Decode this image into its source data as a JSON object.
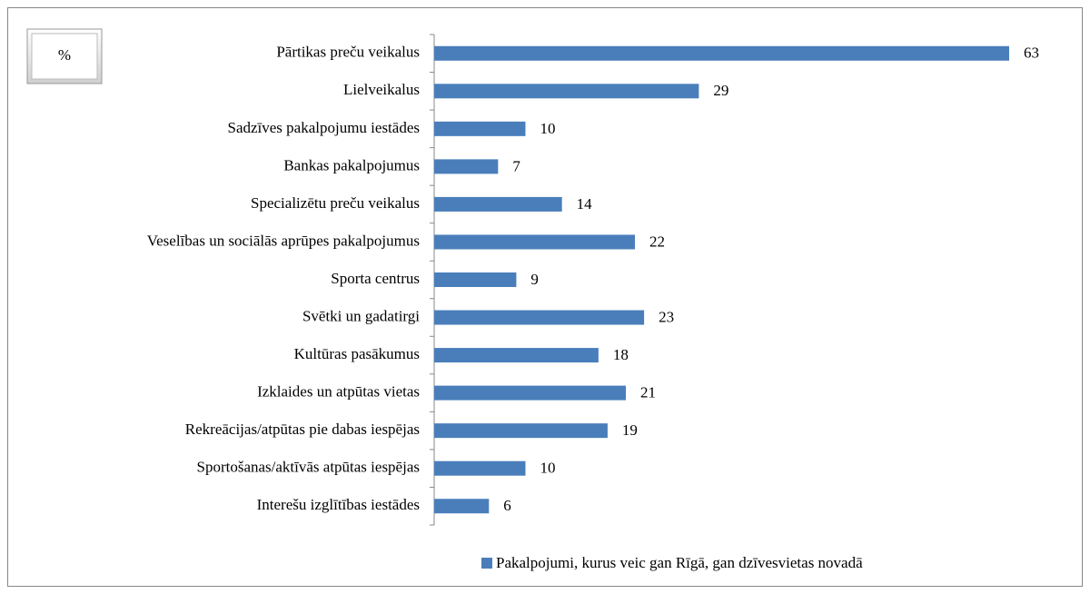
{
  "chart_data": {
    "type": "bar",
    "orientation": "horizontal",
    "annotation": "%",
    "categories": [
      "Pārtikas preču veikalus",
      "Lielveikalus",
      "Sadzīves pakalpojumu iestādes",
      "Bankas pakalpojumus",
      "Specializētu preču veikalus",
      "Veselības un sociālās aprūpes pakalpojumus",
      "Sporta centrus",
      "Svētki un gadatirgi",
      "Kultūras pasākumus",
      "Izklaides un atpūtas vietas",
      "Rekreācijas/atpūtas pie dabas iespējas",
      "Sportošanas/aktīvās atpūtas iespējas",
      "Interešu izglītības iestādes"
    ],
    "series": [
      {
        "name": "Pakalpojumi, kurus veic gan Rīgā, gan dzīvesvietas novadā",
        "color": "#4a7ebb",
        "values": [
          63,
          29,
          10,
          7,
          14,
          22,
          9,
          23,
          18,
          21,
          19,
          10,
          6
        ]
      }
    ],
    "legend": "bottom"
  }
}
